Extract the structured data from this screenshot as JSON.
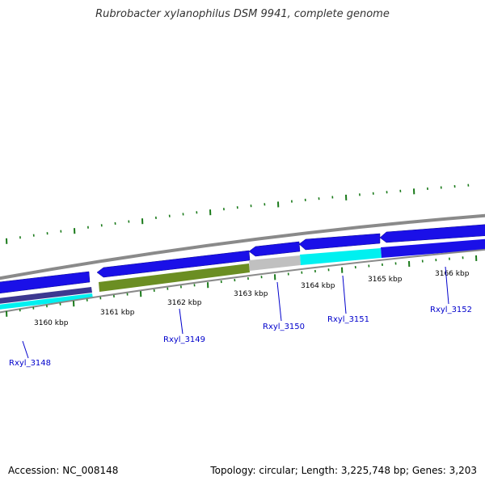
{
  "title": "Rubrobacter xylanophilus DSM 9941, complete genome",
  "footer": {
    "accession": "Accession: NC_008148",
    "summary": "Topology: circular; Length: 3,225,748 bp; Genes: 3,203"
  },
  "colors": {
    "backbone": "#8a8a8a",
    "cds": "#1a10e8",
    "cds_dark": "#3c3890",
    "rna": "#00f0f0",
    "pseudo": "#6b8e23",
    "other": "#c0c0c0",
    "ticks": "#1a7a1a",
    "label": "#0000cc"
  },
  "tick_labels": [
    "3160 kbp",
    "3161 kbp",
    "3162 kbp",
    "3163 kbp",
    "3164 kbp",
    "3165 kbp",
    "3166 kbp"
  ],
  "gene_labels": [
    "Rxyl_3148",
    "Rxyl_3149",
    "Rxyl_3150",
    "Rxyl_3151",
    "Rxyl_3152"
  ]
}
